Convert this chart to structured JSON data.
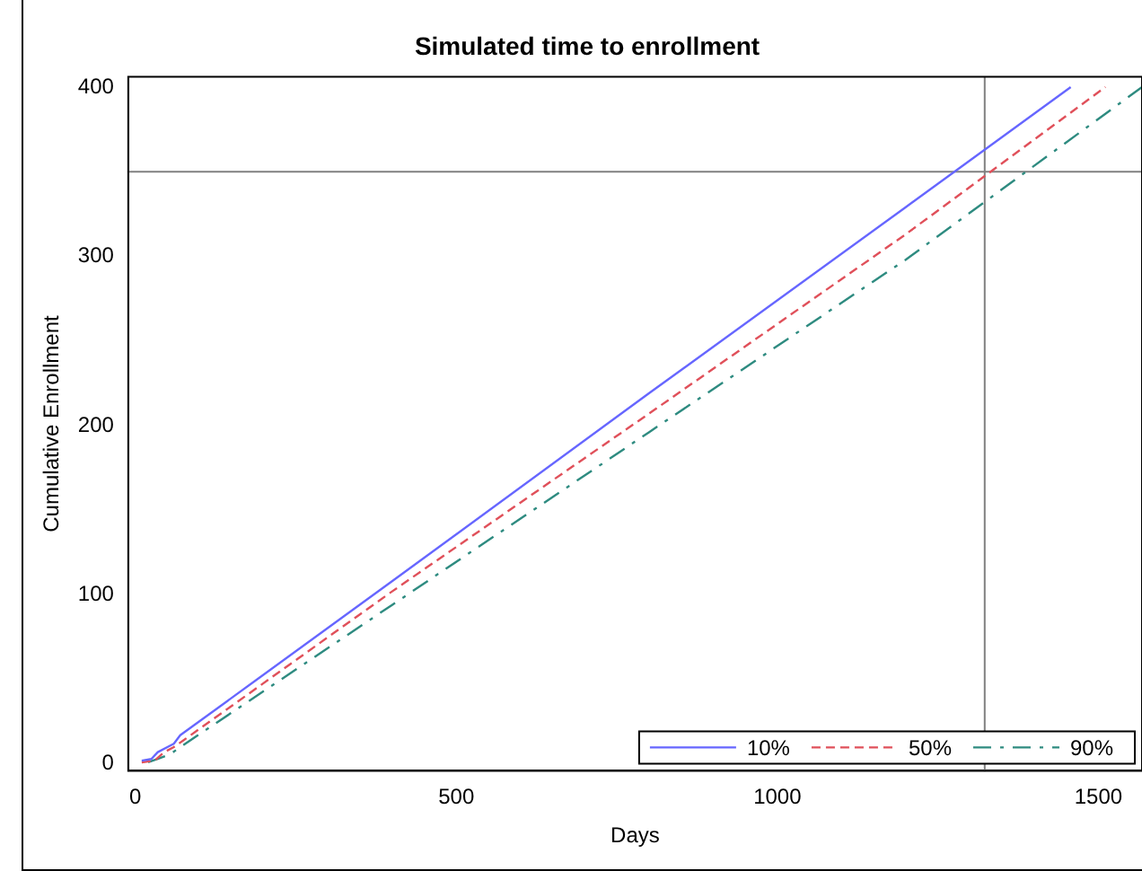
{
  "chart_data": {
    "type": "line",
    "title": "Simulated time to enrollment",
    "xlabel": "Days",
    "ylabel": "Cumulative Enrollment",
    "xlim": [
      -11,
      1568
    ],
    "xticks": [
      0,
      500,
      1000,
      1500
    ],
    "ylim": [
      -4,
      406
    ],
    "yticks": [
      0,
      100,
      200,
      300,
      400
    ],
    "series": [
      {
        "name": "10%",
        "color": "#6666ff",
        "line_style": "solid",
        "x": [
          10,
          25,
          35,
          50,
          60,
          70,
          400,
          800,
          1200,
          1457
        ],
        "values": [
          2,
          3,
          7,
          10,
          12,
          17,
          108,
          219,
          329,
          400
        ]
      },
      {
        "name": "50%",
        "color": "#e0505a",
        "line_style": "dashed",
        "x": [
          10,
          30,
          45,
          60,
          75,
          400,
          800,
          1200,
          1511
        ],
        "values": [
          1,
          2,
          7,
          10,
          14,
          102,
          207,
          313,
          400
        ]
      },
      {
        "name": "90%",
        "color": "#2e8b80",
        "line_style": "dashdot",
        "x": [
          20,
          35,
          55,
          70,
          400,
          800,
          1200,
          1568
        ],
        "values": [
          1,
          3,
          6,
          10,
          94,
          196,
          298,
          400
        ]
      }
    ],
    "ref_lines": [
      {
        "axis": "y",
        "value": 350,
        "color": "#808080"
      },
      {
        "axis": "x",
        "value": 1323,
        "color": "#808080"
      }
    ],
    "legend": "bottom right",
    "grid": false,
    "marker": "none"
  }
}
